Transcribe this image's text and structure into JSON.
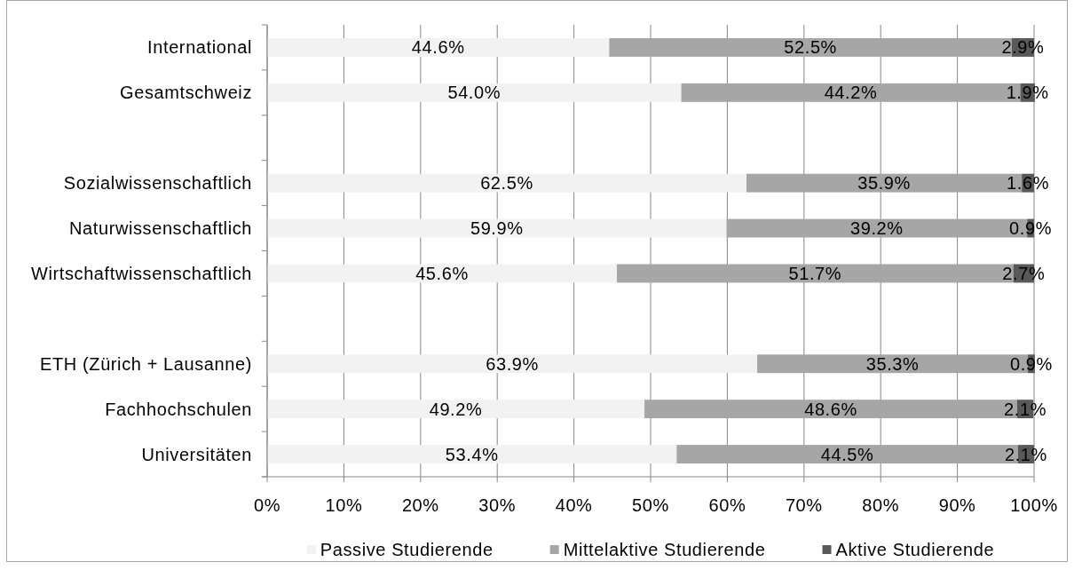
{
  "chart_data": {
    "type": "bar",
    "orientation": "horizontal",
    "stacked": true,
    "categories": [
      "International",
      "Gesamtschweiz",
      null,
      "Sozialwissenschaftlich",
      "Naturwissenschaftlich",
      "Wirtschaftwissenschaftlich",
      null,
      "ETH (Zürich + Lausanne)",
      "Fachhochschulen",
      "Universitäten"
    ],
    "series": [
      {
        "name": "Passive Studierende",
        "color": "#f2f2f2",
        "values": [
          44.6,
          54.0,
          null,
          62.5,
          59.9,
          45.6,
          null,
          63.9,
          49.2,
          53.4
        ],
        "value_labels": [
          "44.6%",
          "54.0%",
          null,
          "62.5%",
          "59.9%",
          "45.6%",
          null,
          "63.9%",
          "49.2%",
          "53.4%"
        ]
      },
      {
        "name": "Mittelaktive Studierende",
        "color": "#a6a6a6",
        "values": [
          52.5,
          44.2,
          null,
          35.9,
          39.2,
          51.7,
          null,
          35.3,
          48.6,
          44.5
        ],
        "value_labels": [
          "52.5%",
          "44.2%",
          null,
          "35.9%",
          "39.2%",
          "51.7%",
          null,
          "35.3%",
          "48.6%",
          "44.5%"
        ]
      },
      {
        "name": "Aktive Studierende",
        "color": "#595959",
        "values": [
          2.9,
          1.9,
          null,
          1.6,
          0.9,
          2.7,
          null,
          0.9,
          2.1,
          2.1
        ],
        "value_labels": [
          "2.9%",
          "1.9%",
          null,
          "1.6%",
          "0.9%",
          "2.7%",
          null,
          "0.9%",
          "2.1%",
          "2.1%"
        ]
      }
    ],
    "xlim": [
      0,
      100
    ],
    "xticks": [
      {
        "value": 0,
        "label": "0%"
      },
      {
        "value": 10,
        "label": "10%"
      },
      {
        "value": 20,
        "label": "20%"
      },
      {
        "value": 30,
        "label": "30%"
      },
      {
        "value": 40,
        "label": "40%"
      },
      {
        "value": 50,
        "label": "50%"
      },
      {
        "value": 60,
        "label": "60%"
      },
      {
        "value": 70,
        "label": "70%"
      },
      {
        "value": 80,
        "label": "80%"
      },
      {
        "value": 90,
        "label": "90%"
      },
      {
        "value": 100,
        "label": "100%"
      }
    ],
    "grid": "x",
    "legend": "bottom"
  }
}
